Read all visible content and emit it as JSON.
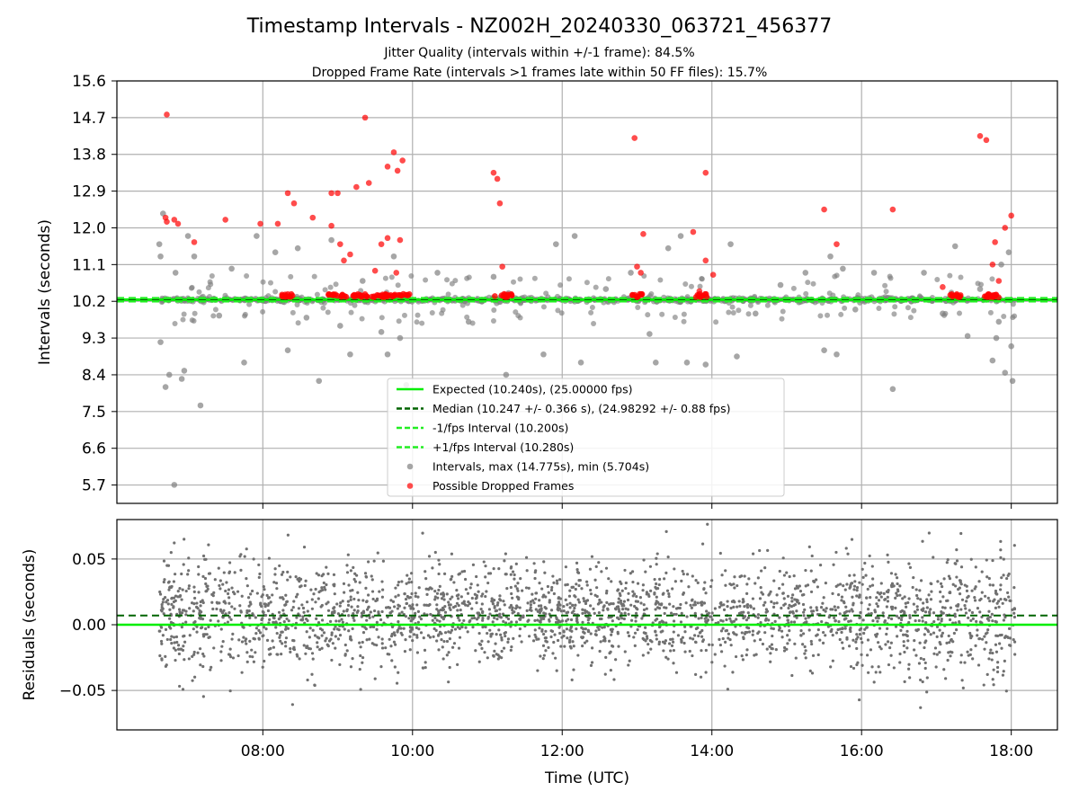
{
  "figure": {
    "title": "Timestamp Intervals - NZ002H_20240330_063721_456377",
    "subtitle_1": "Jitter Quality (intervals within +/-1 frame): 84.5%",
    "subtitle_2": "Dropped Frame Rate (intervals >1 frames late within 50 FF files): 15.7%"
  },
  "colors": {
    "expected": "#00ee00",
    "median": "#006400",
    "fps_band": "#22ee22",
    "intervals": "#808080",
    "dropped": "#ff0000",
    "grid": "#b0b0b0",
    "axes": "#000000"
  },
  "chart_data": [
    {
      "type": "scatter",
      "ylabel": "Intervals (seconds)",
      "xlabel": "",
      "x_unit": "hours UTC",
      "xlim": [
        "06:03",
        "18:37"
      ],
      "ylim": [
        5.25,
        15.6
      ],
      "yticks": [
        "5.7",
        "6.6",
        "7.5",
        "8.4",
        "9.3",
        "10.2",
        "11.1",
        "12.0",
        "12.9",
        "13.8",
        "14.7",
        "15.6"
      ],
      "grid": true,
      "legend": {
        "placement": "lower-center",
        "entries": [
          "Expected (10.240s), (25.00000 fps)",
          "Median (10.247 +/- 0.366 s), (24.98292 +/- 0.88 fps)",
          "-1/fps Interval (10.200s)",
          "+1/fps Interval (10.280s)",
          "Intervals, max (14.775s), min (5.704s)",
          "Possible Dropped Frames"
        ]
      },
      "lines": [
        {
          "name": "Expected",
          "y": 10.24
        },
        {
          "name": "Median",
          "y": 10.247
        },
        {
          "name": "-1/fps Interval",
          "y": 10.2
        },
        {
          "name": "+1/fps Interval",
          "y": 10.28
        }
      ],
      "series": [
        {
          "name": "Intervals",
          "x_range": [
            "06:37",
            "18:03"
          ],
          "max": 14.775,
          "min": 5.704,
          "points": [
            [
              "06:49",
              5.704
            ],
            [
              "06:40",
              12.35
            ],
            [
              "06:37",
              11.6
            ],
            [
              "06:38",
              11.3
            ],
            [
              "06:38",
              9.2
            ],
            [
              "06:42",
              8.1
            ],
            [
              "06:45",
              8.4
            ],
            [
              "06:50",
              10.9
            ],
            [
              "06:55",
              8.3
            ],
            [
              "06:57",
              8.5
            ],
            [
              "07:00",
              11.8
            ],
            [
              "07:05",
              11.3
            ],
            [
              "07:10",
              7.65
            ],
            [
              "07:25",
              9.85
            ],
            [
              "07:35",
              11.0
            ],
            [
              "07:45",
              8.7
            ],
            [
              "07:55",
              11.8
            ],
            [
              "08:10",
              11.4
            ],
            [
              "08:20",
              9.0
            ],
            [
              "08:28",
              11.5
            ],
            [
              "08:35",
              9.8
            ],
            [
              "08:45",
              8.25
            ],
            [
              "08:55",
              11.7
            ],
            [
              "09:02",
              9.6
            ],
            [
              "09:10",
              8.9
            ],
            [
              "09:20",
              10.7
            ],
            [
              "09:35",
              9.45
            ],
            [
              "09:40",
              8.9
            ],
            [
              "09:45",
              11.3
            ],
            [
              "09:50",
              9.3
            ],
            [
              "09:55",
              8.15
            ],
            [
              "10:20",
              10.9
            ],
            [
              "10:45",
              9.7
            ],
            [
              "11:05",
              10.8
            ],
            [
              "11:15",
              8.4
            ],
            [
              "11:45",
              8.9
            ],
            [
              "11:55",
              11.6
            ],
            [
              "12:10",
              11.8
            ],
            [
              "12:15",
              8.7
            ],
            [
              "12:35",
              10.5
            ],
            [
              "12:55",
              10.9
            ],
            [
              "13:10",
              9.4
            ],
            [
              "13:15",
              8.7
            ],
            [
              "13:25",
              11.5
            ],
            [
              "13:40",
              8.7
            ],
            [
              "13:35",
              11.8
            ],
            [
              "13:55",
              8.65
            ],
            [
              "14:15",
              11.6
            ],
            [
              "14:20",
              8.85
            ],
            [
              "14:35",
              9.9
            ],
            [
              "14:55",
              10.6
            ],
            [
              "15:15",
              10.9
            ],
            [
              "15:30",
              9.0
            ],
            [
              "15:35",
              11.3
            ],
            [
              "15:40",
              8.9
            ],
            [
              "15:45",
              11.0
            ],
            [
              "15:55",
              10.0
            ],
            [
              "16:10",
              10.9
            ],
            [
              "16:25",
              8.05
            ],
            [
              "16:40",
              10.2
            ],
            [
              "16:50",
              10.9
            ],
            [
              "17:05",
              9.9
            ],
            [
              "17:15",
              11.55
            ],
            [
              "17:25",
              9.35
            ],
            [
              "17:35",
              10.5
            ],
            [
              "17:45",
              8.75
            ],
            [
              "17:50",
              9.7
            ],
            [
              "17:55",
              8.45
            ],
            [
              "17:58",
              11.4
            ],
            [
              "18:00",
              9.1
            ],
            [
              "18:01",
              8.25
            ],
            [
              "17:52",
              11.1
            ],
            [
              "17:48",
              9.3
            ]
          ]
        },
        {
          "name": "Possible Dropped Frames",
          "points": [
            [
              "06:43",
              14.775
            ],
            [
              "06:42",
              12.25
            ],
            [
              "06:43",
              12.15
            ],
            [
              "06:49",
              12.2
            ],
            [
              "06:52",
              12.1
            ],
            [
              "07:05",
              11.65
            ],
            [
              "07:30",
              12.2
            ],
            [
              "07:58",
              12.1
            ],
            [
              "08:12",
              12.1
            ],
            [
              "08:20",
              12.85
            ],
            [
              "08:25",
              12.6
            ],
            [
              "08:40",
              12.25
            ],
            [
              "08:55",
              12.85
            ],
            [
              "09:00",
              12.85
            ],
            [
              "08:55",
              12.05
            ],
            [
              "09:02",
              11.6
            ],
            [
              "09:05",
              11.2
            ],
            [
              "09:10",
              11.35
            ],
            [
              "09:15",
              13.0
            ],
            [
              "09:25",
              13.1
            ],
            [
              "09:22",
              14.7
            ],
            [
              "09:30",
              10.95
            ],
            [
              "09:35",
              11.6
            ],
            [
              "09:40",
              13.5
            ],
            [
              "09:45",
              13.85
            ],
            [
              "09:48",
              13.4
            ],
            [
              "09:52",
              13.65
            ],
            [
              "09:40",
              11.75
            ],
            [
              "09:50",
              11.7
            ],
            [
              "09:47",
              10.9
            ],
            [
              "11:05",
              13.35
            ],
            [
              "11:08",
              13.2
            ],
            [
              "11:10",
              12.6
            ],
            [
              "11:12",
              11.05
            ],
            [
              "12:58",
              14.2
            ],
            [
              "13:00",
              11.05
            ],
            [
              "13:03",
              10.9
            ],
            [
              "13:05",
              11.85
            ],
            [
              "13:45",
              11.9
            ],
            [
              "13:50",
              10.45
            ],
            [
              "13:55",
              13.35
            ],
            [
              "13:55",
              11.2
            ],
            [
              "14:01",
              10.85
            ],
            [
              "15:30",
              12.45
            ],
            [
              "15:40",
              11.6
            ],
            [
              "16:25",
              12.45
            ],
            [
              "17:05",
              10.55
            ],
            [
              "17:35",
              14.25
            ],
            [
              "17:40",
              14.15
            ],
            [
              "17:45",
              11.1
            ],
            [
              "17:47",
              11.65
            ],
            [
              "17:50",
              10.7
            ],
            [
              "17:55",
              12.0
            ],
            [
              "18:00",
              12.3
            ]
          ],
          "dense_band_y": 10.24,
          "dense_clusters": [
            [
              "08:13",
              "08:25"
            ],
            [
              "08:52",
              "09:25"
            ],
            [
              "09:22",
              "09:58"
            ],
            [
              "11:05",
              "11:20"
            ],
            [
              "12:55",
              "13:05"
            ],
            [
              "13:47",
              "13:57"
            ],
            [
              "17:10",
              "17:22"
            ],
            [
              "17:35",
              "17:50"
            ]
          ]
        }
      ]
    },
    {
      "type": "scatter",
      "ylabel": "Residuals (seconds)",
      "xlabel": "Time (UTC)",
      "xlim": [
        "06:03",
        "18:37"
      ],
      "ylim": [
        -0.08,
        0.08
      ],
      "yticks": [
        "−0.05",
        "0.00",
        "0.05"
      ],
      "xticks": [
        "08:00",
        "10:00",
        "12:00",
        "14:00",
        "16:00",
        "18:00"
      ],
      "grid": true,
      "lines": [
        {
          "name": "Expected",
          "y": 0.0
        },
        {
          "name": "Median",
          "y": 0.007
        }
      ],
      "series": [
        {
          "name": "Residuals",
          "x_range": [
            "06:37",
            "18:03"
          ],
          "center": 0.007,
          "typical_spread": 0.025,
          "range": [
            -0.08,
            0.08
          ]
        }
      ]
    }
  ]
}
